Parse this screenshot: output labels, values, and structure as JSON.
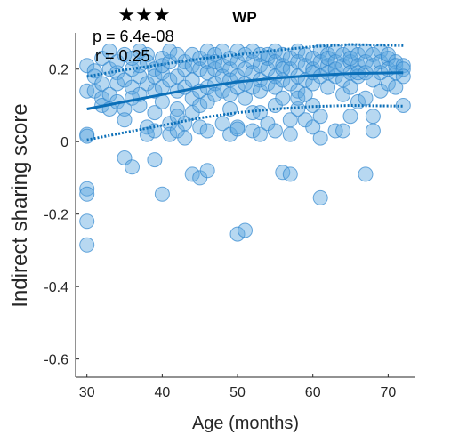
{
  "chart_data": {
    "type": "scatter",
    "title": "WP",
    "xlabel": "Age (months)",
    "ylabel": "Indirect sharing score",
    "xlim": [
      28.5,
      73.5
    ],
    "ylim": [
      -0.65,
      0.3
    ],
    "xticks": [
      30,
      40,
      50,
      60,
      70
    ],
    "yticks": [
      -0.6,
      -0.4,
      -0.2,
      0,
      0.2
    ],
    "ytick_labels": [
      "-0.6",
      "-0.4",
      "-0.2",
      "0",
      "0.2"
    ],
    "significance": "★★★",
    "p_text": "p = 6.4e-08",
    "r_text": "r = 0.25",
    "grid": false,
    "legend": "none",
    "marker_color": "#5fa8e0",
    "marker_edge": "#2f86cf",
    "line_color": "#0b6fb8",
    "fit": {
      "x": [
        30,
        35,
        40,
        45,
        50,
        55,
        60,
        65,
        72
      ],
      "y": [
        0.09,
        0.11,
        0.13,
        0.15,
        0.165,
        0.175,
        0.183,
        0.188,
        0.19
      ]
    },
    "ci_upper": {
      "x": [
        30,
        35,
        40,
        45,
        50,
        55,
        60,
        65,
        72
      ],
      "y": [
        0.18,
        0.198,
        0.213,
        0.228,
        0.24,
        0.252,
        0.262,
        0.268,
        0.265
      ]
    },
    "ci_lower": {
      "x": [
        30,
        35,
        40,
        45,
        50,
        55,
        60,
        65,
        72
      ],
      "y": [
        0.005,
        0.025,
        0.045,
        0.065,
        0.08,
        0.09,
        0.097,
        0.1,
        0.098
      ]
    },
    "points": [
      [
        30,
        0.21
      ],
      [
        30,
        0.14
      ],
      [
        30,
        0.02
      ],
      [
        30,
        0.015
      ],
      [
        30,
        -0.13
      ],
      [
        30,
        -0.145
      ],
      [
        30,
        -0.22
      ],
      [
        30,
        -0.285
      ],
      [
        31,
        0.195
      ],
      [
        31,
        0.14
      ],
      [
        31,
        0.18
      ],
      [
        32,
        0.12
      ],
      [
        32,
        0.1
      ],
      [
        32,
        0.16
      ],
      [
        32,
        0.23
      ],
      [
        33,
        0.2
      ],
      [
        33,
        0.13
      ],
      [
        33,
        0.25
      ],
      [
        33,
        0.09
      ],
      [
        34,
        0.19
      ],
      [
        34,
        0.16
      ],
      [
        34,
        0.11
      ],
      [
        34,
        0.22
      ],
      [
        35,
        0.17
      ],
      [
        35,
        0.09
      ],
      [
        35,
        0.06
      ],
      [
        35,
        -0.045
      ],
      [
        35,
        0.24
      ],
      [
        36,
        0.2
      ],
      [
        36,
        0.15
      ],
      [
        36,
        0.12
      ],
      [
        36,
        -0.07
      ],
      [
        36,
        0.23
      ],
      [
        37,
        0.18
      ],
      [
        37,
        0.13
      ],
      [
        37,
        0.1
      ],
      [
        37,
        0.25
      ],
      [
        37,
        0.21
      ],
      [
        38,
        0.22
      ],
      [
        38,
        0.16
      ],
      [
        38,
        0.04
      ],
      [
        38,
        0.02
      ],
      [
        38,
        0.24
      ],
      [
        39,
        0.2
      ],
      [
        39,
        0.14
      ],
      [
        39,
        0.08
      ],
      [
        39,
        -0.05
      ],
      [
        39,
        0.03
      ],
      [
        39,
        0.18
      ],
      [
        40,
        0.23
      ],
      [
        40,
        0.19
      ],
      [
        40,
        0.15
      ],
      [
        40,
        -0.145
      ],
      [
        40,
        0.21
      ],
      [
        40,
        0.11
      ],
      [
        41,
        0.22
      ],
      [
        41,
        0.17
      ],
      [
        41,
        0.05
      ],
      [
        41,
        0.02
      ],
      [
        41,
        0.25
      ],
      [
        42,
        0.24
      ],
      [
        42,
        0.18
      ],
      [
        42,
        0.14
      ],
      [
        42,
        0.09
      ],
      [
        42,
        0.07
      ],
      [
        42,
        0.03
      ],
      [
        43,
        0.22
      ],
      [
        43,
        0.15
      ],
      [
        43,
        0.05
      ],
      [
        43,
        0.01
      ],
      [
        43,
        0.2
      ],
      [
        44,
        0.24
      ],
      [
        44,
        0.21
      ],
      [
        44,
        0.12
      ],
      [
        44,
        0.08
      ],
      [
        44,
        -0.09
      ],
      [
        44,
        0.17
      ],
      [
        45,
        0.23
      ],
      [
        45,
        0.2
      ],
      [
        45,
        0.14
      ],
      [
        45,
        0.04
      ],
      [
        45,
        -0.1
      ],
      [
        45,
        0.1
      ],
      [
        46,
        0.22
      ],
      [
        46,
        0.19
      ],
      [
        46,
        0.15
      ],
      [
        46,
        0.11
      ],
      [
        46,
        0.03
      ],
      [
        46,
        -0.08
      ],
      [
        46,
        0.25
      ],
      [
        47,
        0.2
      ],
      [
        47,
        0.16
      ],
      [
        47,
        0.13
      ],
      [
        47,
        0.24
      ],
      [
        47,
        0.22
      ],
      [
        48,
        0.21
      ],
      [
        48,
        0.18
      ],
      [
        48,
        0.14
      ],
      [
        48,
        0.05
      ],
      [
        48,
        0.25
      ],
      [
        49,
        0.23
      ],
      [
        49,
        0.2
      ],
      [
        49,
        0.17
      ],
      [
        49,
        0.13
      ],
      [
        49,
        0.09
      ],
      [
        49,
        0.02
      ],
      [
        50,
        0.25
      ],
      [
        50,
        0.22
      ],
      [
        50,
        0.18
      ],
      [
        50,
        0.15
      ],
      [
        50,
        0.04
      ],
      [
        50,
        0.035
      ],
      [
        50,
        -0.255
      ],
      [
        51,
        0.24
      ],
      [
        51,
        0.2
      ],
      [
        51,
        0.16
      ],
      [
        51,
        0.12
      ],
      [
        51,
        -0.245
      ],
      [
        52,
        0.22
      ],
      [
        52,
        0.19
      ],
      [
        52,
        0.15
      ],
      [
        52,
        0.08
      ],
      [
        52,
        0.03
      ],
      [
        52,
        0.25
      ],
      [
        53,
        0.24
      ],
      [
        53,
        0.21
      ],
      [
        53,
        0.17
      ],
      [
        53,
        0.14
      ],
      [
        53,
        0.02
      ],
      [
        53,
        0.08
      ],
      [
        54,
        0.23
      ],
      [
        54,
        0.2
      ],
      [
        54,
        0.16
      ],
      [
        54,
        0.05
      ],
      [
        54,
        0.24
      ],
      [
        55,
        0.25
      ],
      [
        55,
        0.22
      ],
      [
        55,
        0.18
      ],
      [
        55,
        0.15
      ],
      [
        55,
        0.1
      ],
      [
        55,
        0.03
      ],
      [
        56,
        0.24
      ],
      [
        56,
        0.21
      ],
      [
        56,
        0.17
      ],
      [
        56,
        0.12
      ],
      [
        56,
        -0.085
      ],
      [
        56,
        0.2
      ],
      [
        57,
        0.23
      ],
      [
        57,
        0.2
      ],
      [
        57,
        0.16
      ],
      [
        57,
        0.06
      ],
      [
        57,
        -0.09
      ],
      [
        57,
        0.02
      ],
      [
        58,
        0.25
      ],
      [
        58,
        0.22
      ],
      [
        58,
        0.18
      ],
      [
        58,
        0.14
      ],
      [
        58,
        0.09
      ],
      [
        58,
        0.12
      ],
      [
        59,
        0.24
      ],
      [
        59,
        0.21
      ],
      [
        59,
        0.17
      ],
      [
        59,
        0.13
      ],
      [
        59,
        0.06
      ],
      [
        60,
        0.23
      ],
      [
        60,
        0.2
      ],
      [
        60,
        0.16
      ],
      [
        60,
        0.1
      ],
      [
        60,
        0.04
      ],
      [
        60,
        0.19
      ],
      [
        61,
        0.25
      ],
      [
        61,
        0.22
      ],
      [
        61,
        0.18
      ],
      [
        61,
        0.07
      ],
      [
        61,
        -0.155
      ],
      [
        61,
        0.01
      ],
      [
        62,
        0.24
      ],
      [
        62,
        0.21
      ],
      [
        62,
        0.19
      ],
      [
        62,
        0.15
      ],
      [
        62,
        0.23
      ],
      [
        63,
        0.25
      ],
      [
        63,
        0.22
      ],
      [
        63,
        0.18
      ],
      [
        63,
        0.03
      ],
      [
        63,
        0.2
      ],
      [
        64,
        0.24
      ],
      [
        64,
        0.21
      ],
      [
        64,
        0.17
      ],
      [
        64,
        0.13
      ],
      [
        64,
        0.03
      ],
      [
        65,
        0.25
      ],
      [
        65,
        0.22
      ],
      [
        65,
        0.19
      ],
      [
        65,
        0.15
      ],
      [
        65,
        0.07
      ],
      [
        65,
        0.23
      ],
      [
        66,
        0.24
      ],
      [
        66,
        0.21
      ],
      [
        66,
        0.18
      ],
      [
        66,
        0.11
      ],
      [
        66,
        0.19
      ],
      [
        67,
        0.25
      ],
      [
        67,
        0.22
      ],
      [
        67,
        0.19
      ],
      [
        67,
        0.12
      ],
      [
        67,
        -0.09
      ],
      [
        68,
        0.24
      ],
      [
        68,
        0.21
      ],
      [
        68,
        0.17
      ],
      [
        68,
        0.07
      ],
      [
        68,
        0.03
      ],
      [
        69,
        0.25
      ],
      [
        69,
        0.22
      ],
      [
        69,
        0.19
      ],
      [
        69,
        0.14
      ],
      [
        70,
        0.23
      ],
      [
        70,
        0.2
      ],
      [
        70,
        0.16
      ],
      [
        70,
        0.24
      ],
      [
        71,
        0.22
      ],
      [
        71,
        0.19
      ],
      [
        71,
        0.15
      ],
      [
        71,
        0.21
      ],
      [
        72,
        0.21
      ],
      [
        72,
        0.2
      ],
      [
        72,
        0.1
      ],
      [
        72,
        0.18
      ]
    ]
  }
}
